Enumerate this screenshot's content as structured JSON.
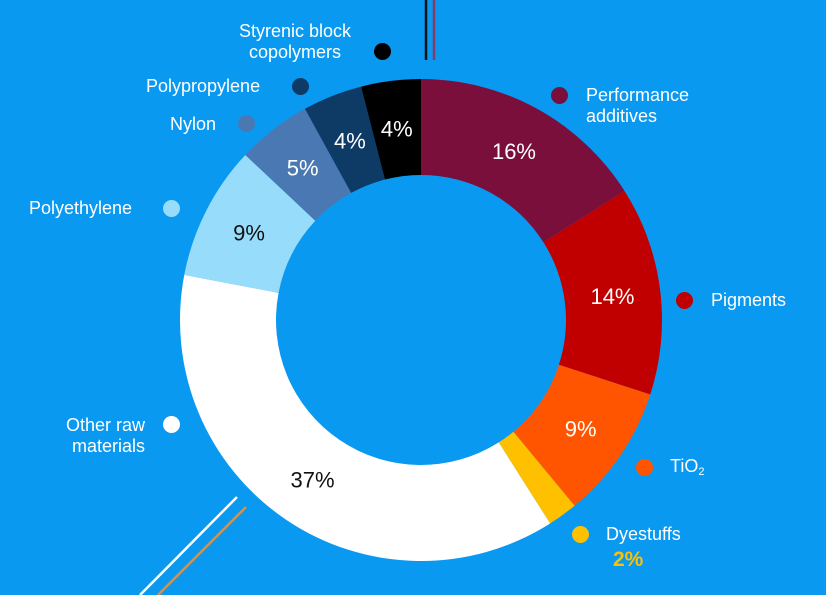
{
  "chart_data": {
    "type": "donut",
    "title": "",
    "slices": [
      {
        "name": "Performance additives",
        "value": 16,
        "label": "16%",
        "color": "#7a0f3c",
        "text_color": "#ffffff"
      },
      {
        "name": "Pigments",
        "value": 14,
        "label": "14%",
        "color": "#c00000",
        "text_color": "#ffffff"
      },
      {
        "name": "TiO2",
        "value": 9,
        "label": "9%",
        "color": "#ff5500",
        "text_color": "#ffffff"
      },
      {
        "name": "Dyestuffs",
        "value": 2,
        "label": "2%",
        "color": "#ffc000",
        "text_color": "#ffc000"
      },
      {
        "name": "Other raw materials",
        "value": 37,
        "label": "37%",
        "color": "#ffffff",
        "text_color": "#111111"
      },
      {
        "name": "Polyethylene",
        "value": 9,
        "label": "9%",
        "color": "#97ddfb",
        "text_color": "#111111"
      },
      {
        "name": "Nylon",
        "value": 5,
        "label": "5%",
        "color": "#4a78b3",
        "text_color": "#ffffff"
      },
      {
        "name": "Polypropylene",
        "value": 4,
        "label": "4%",
        "color": "#0d3b66",
        "text_color": "#ffffff"
      },
      {
        "name": "Styrenic block copolymers",
        "value": 4,
        "label": "4%",
        "color": "#000000",
        "text_color": "#ffffff"
      }
    ]
  },
  "legend": {
    "styrenic_line1": "Styrenic block",
    "styrenic_line2": "copolymers",
    "polypropylene": "Polypropylene",
    "nylon": "Nylon",
    "polyethylene": "Polyethylene",
    "other_line1": "Other raw",
    "other_line2": "materials",
    "performance_line1": "Performance",
    "performance_line2": "additives",
    "pigments": "Pigments",
    "tio2_main": "TiO",
    "tio2_sub": "2",
    "dyestuffs": "Dyestuffs",
    "dyestuffs_pct": "2%"
  },
  "colors": {
    "background": "#0a99f0",
    "accent_orange": "#f08a2c",
    "accent_purple": "#8a3a6a"
  }
}
